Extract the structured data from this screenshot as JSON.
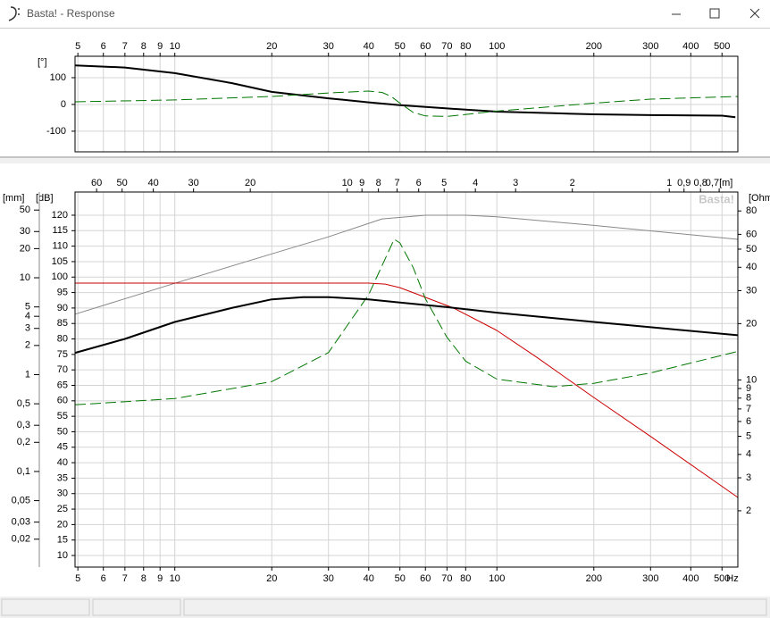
{
  "window": {
    "title": "Basta! - Response"
  },
  "chart_data": [
    {
      "type": "line",
      "x_scale": "log",
      "x_axis_position": "top",
      "grid": true,
      "xlim": [
        4.9,
        560
      ],
      "xticks": [
        5,
        6,
        7,
        8,
        9,
        10,
        20,
        30,
        40,
        50,
        60,
        70,
        80,
        100,
        200,
        300,
        400,
        500
      ],
      "y_label": "[°]",
      "ylim": [
        -177,
        180
      ],
      "yticks": [
        100,
        0,
        -100
      ],
      "series": [
        {
          "color": "#000000",
          "width": 2,
          "dash": false,
          "x": [
            4.9,
            7,
            10,
            15,
            20,
            30,
            40,
            50,
            70,
            100,
            150,
            200,
            300,
            500,
            550
          ],
          "values": [
            146,
            138,
            117,
            80,
            47,
            23,
            8,
            -3,
            -15,
            -27,
            -33,
            -37,
            -40,
            -42,
            -48
          ]
        },
        {
          "color": "#007700",
          "width": 1,
          "dash": true,
          "x": [
            4.9,
            10,
            20,
            30,
            40,
            44,
            47,
            50,
            55,
            60,
            70,
            100,
            200,
            300,
            560
          ],
          "values": [
            10,
            17,
            30,
            43,
            50,
            45,
            30,
            5,
            -30,
            -43,
            -45,
            -25,
            5,
            20,
            30
          ]
        }
      ]
    },
    {
      "type": "line",
      "x_scale": "log",
      "x_axis_position": "bottom",
      "grid": true,
      "watermark": "Basta!",
      "xlim": [
        4.9,
        560
      ],
      "xticks": [
        5,
        6,
        7,
        8,
        9,
        10,
        20,
        30,
        40,
        50,
        60,
        70,
        80,
        100,
        200,
        300,
        400,
        500
      ],
      "x_label": "Hz",
      "x2lim": [
        70,
        0.6125
      ],
      "x2ticks": [
        60,
        50,
        40,
        30,
        20,
        10,
        9,
        8,
        7,
        6,
        5,
        4,
        3,
        2,
        1,
        {
          "value": 0.9,
          "label": "0,9"
        },
        {
          "value": 0.8,
          "label": "0,8"
        },
        {
          "value": 0.7,
          "label": "0,7[m]"
        }
      ],
      "y_label": "[dB]",
      "ylim": [
        6.25,
        127.5
      ],
      "yticks": [
        10,
        15,
        20,
        25,
        30,
        35,
        40,
        45,
        50,
        55,
        60,
        65,
        70,
        75,
        80,
        85,
        90,
        95,
        100,
        105,
        110,
        115,
        120
      ],
      "y2_label": "[Ohm",
      "y2_scale": "log",
      "y2lim": [
        1,
        101
      ],
      "y2ticks": [
        80,
        60,
        50,
        40,
        30,
        20,
        10,
        9,
        8,
        7,
        6,
        5,
        4,
        3,
        2
      ],
      "y3_label": "[mm]",
      "y3_scale": "log",
      "y3lim": [
        0.0103,
        76.8
      ],
      "y3ticks": [
        50,
        30,
        20,
        10,
        5,
        4,
        3,
        2,
        1,
        {
          "value": 0.5,
          "label": "0,5"
        },
        {
          "value": 0.3,
          "label": "0,3"
        },
        {
          "value": 0.2,
          "label": "0,2"
        },
        {
          "value": 0.1,
          "label": "0,1"
        },
        {
          "value": 0.05,
          "label": "0,05"
        },
        {
          "value": 0.03,
          "label": "0,03"
        },
        {
          "value": 0.02,
          "label": "0,02"
        }
      ],
      "series": [
        {
          "axis": "y",
          "color": "#888888",
          "width": 1,
          "dash": false,
          "x": [
            4.9,
            10,
            20,
            30,
            44,
            60,
            80,
            100,
            200,
            560
          ],
          "values": [
            88,
            98,
            107.5,
            113,
            118.8,
            120,
            120,
            119.5,
            116.7,
            112.2
          ]
        },
        {
          "axis": "y3",
          "color": "#cc0000",
          "width": 1,
          "dash": false,
          "x": [
            4.9,
            40,
            45,
            50,
            57,
            73,
            100,
            133,
            200,
            300,
            560
          ],
          "values": [
            8.8,
            8.8,
            8.6,
            7.9,
            6.7,
            4.9,
            2.86,
            1.51,
            0.58,
            0.23,
            0.054
          ]
        },
        {
          "axis": "y2",
          "color": "#007700",
          "width": 1,
          "dash": true,
          "x": [
            4.9,
            10,
            20,
            30,
            40,
            45,
            48,
            50,
            55,
            60,
            70,
            80,
            100,
            150,
            200,
            300,
            560
          ],
          "values": [
            7.36,
            7.95,
            9.8,
            14,
            28.6,
            44.4,
            56.5,
            54,
            39.8,
            27.1,
            16.9,
            12.6,
            10.1,
            9.2,
            9.6,
            10.9,
            14.2
          ]
        },
        {
          "axis": "y",
          "color": "#000000",
          "width": 2,
          "dash": false,
          "x": [
            4.9,
            7,
            10,
            15,
            20,
            25,
            30,
            40,
            50,
            70,
            100,
            200,
            300,
            560
          ],
          "values": [
            75.5,
            80,
            85.5,
            90,
            92.8,
            93.5,
            93.5,
            92.8,
            91.8,
            90.3,
            88.5,
            85.5,
            83.8,
            81.2
          ]
        }
      ]
    }
  ]
}
